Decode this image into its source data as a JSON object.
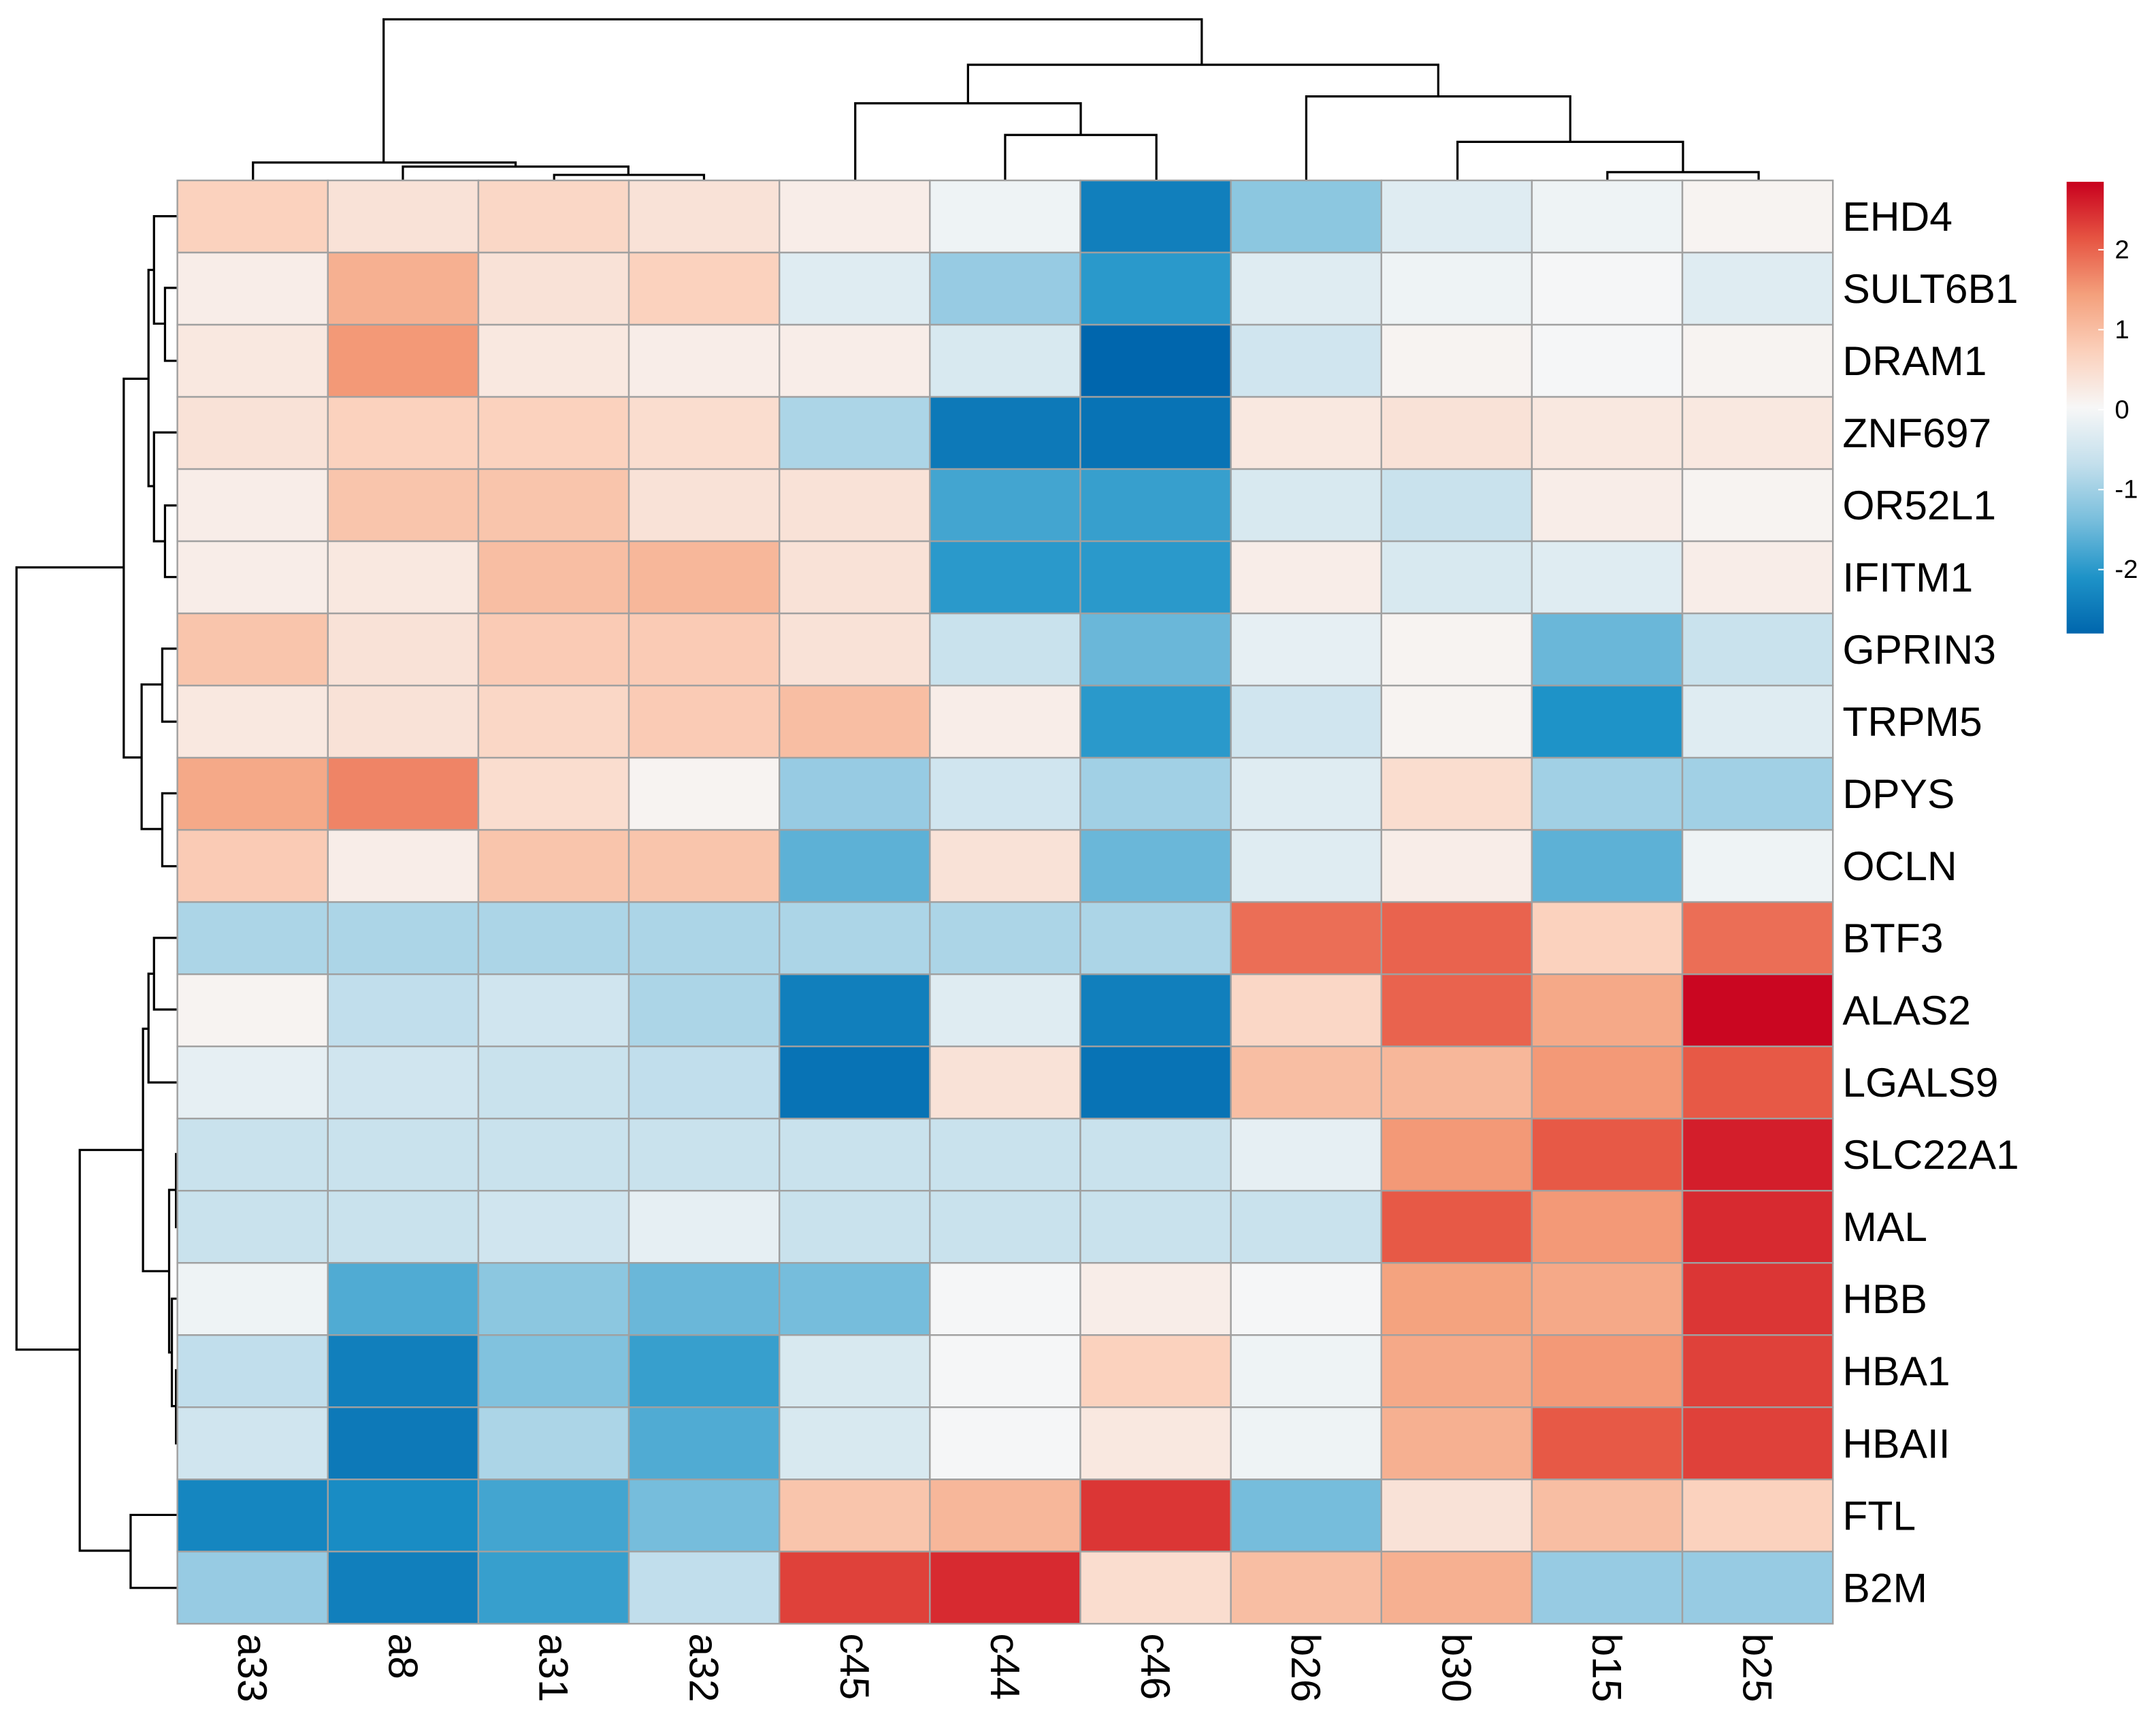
{
  "chart_data": {
    "type": "heatmap",
    "rows": [
      "EHD4",
      "SULT6B1",
      "DRAM1",
      "ZNF697",
      "OR52L1",
      "IFITM1",
      "GPRIN3",
      "TRPM5",
      "DPYS",
      "OCLN",
      "BTF3",
      "ALAS2",
      "LGALS9",
      "SLC22A1",
      "MAL",
      "HBB",
      "HBA1",
      "HBAII",
      "FTL",
      "B2M"
    ],
    "columns": [
      "a33",
      "a8",
      "a31",
      "a32",
      "c45",
      "c44",
      "c46",
      "b26",
      "b30",
      "b15",
      "b25"
    ],
    "values": [
      [
        0.7,
        0.4,
        0.6,
        0.4,
        0.2,
        -0.1,
        -2.4,
        -1.2,
        -0.3,
        -0.1,
        0.1
      ],
      [
        0.2,
        1.2,
        0.4,
        0.7,
        -0.3,
        -1.1,
        -2.0,
        -0.3,
        -0.1,
        0.0,
        -0.3
      ],
      [
        0.3,
        1.5,
        0.3,
        0.2,
        0.2,
        -0.4,
        -2.8,
        -0.5,
        0.1,
        0.0,
        0.1
      ],
      [
        0.4,
        0.7,
        0.7,
        0.5,
        -0.9,
        -2.5,
        -2.6,
        0.3,
        0.4,
        0.3,
        0.3
      ],
      [
        0.2,
        0.9,
        0.9,
        0.4,
        0.4,
        -1.8,
        -1.9,
        -0.4,
        -0.6,
        0.2,
        0.1
      ],
      [
        0.2,
        0.3,
        1.0,
        1.1,
        0.4,
        -2.0,
        -2.0,
        0.2,
        -0.4,
        -0.3,
        0.2
      ],
      [
        0.9,
        0.4,
        0.8,
        0.8,
        0.4,
        -0.6,
        -1.5,
        -0.2,
        0.1,
        -1.5,
        -0.6
      ],
      [
        0.3,
        0.4,
        0.6,
        0.8,
        1.0,
        0.2,
        -2.0,
        -0.5,
        0.1,
        -2.1,
        -0.3
      ],
      [
        1.3,
        1.7,
        0.5,
        0.1,
        -1.1,
        -0.5,
        -1.0,
        -0.3,
        0.5,
        -1.0,
        -1.0
      ],
      [
        0.8,
        0.2,
        0.9,
        0.9,
        -1.6,
        0.4,
        -1.5,
        -0.3,
        0.2,
        -1.6,
        -0.1
      ],
      [
        -0.9,
        -0.9,
        -0.9,
        -0.9,
        -0.9,
        -0.9,
        -0.9,
        1.9,
        2.0,
        0.7,
        1.9
      ],
      [
        0.1,
        -0.7,
        -0.5,
        -0.9,
        -2.4,
        -0.3,
        -2.4,
        0.6,
        2.0,
        1.3,
        2.8
      ],
      [
        -0.2,
        -0.5,
        -0.6,
        -0.7,
        -2.6,
        0.4,
        -2.6,
        1.0,
        1.1,
        1.5,
        2.1
      ],
      [
        -0.6,
        -0.6,
        -0.6,
        -0.6,
        -0.6,
        -0.6,
        -0.6,
        -0.2,
        1.5,
        2.1,
        2.6
      ],
      [
        -0.6,
        -0.6,
        -0.5,
        -0.2,
        -0.6,
        -0.6,
        -0.6,
        -0.6,
        2.1,
        1.5,
        2.5
      ],
      [
        -0.1,
        -1.7,
        -1.2,
        -1.5,
        -1.4,
        0.0,
        0.2,
        0.0,
        1.4,
        1.3,
        2.4
      ],
      [
        -0.7,
        -2.4,
        -1.3,
        -1.9,
        -0.4,
        0.0,
        0.7,
        -0.1,
        1.3,
        1.5,
        2.3
      ],
      [
        -0.5,
        -2.5,
        -0.9,
        -1.7,
        -0.4,
        0.0,
        0.3,
        -0.1,
        1.2,
        2.1,
        2.3
      ],
      [
        -2.3,
        -2.2,
        -1.8,
        -1.4,
        0.9,
        1.1,
        2.4,
        -1.4,
        0.4,
        1.0,
        0.7
      ],
      [
        -1.1,
        -2.4,
        -1.9,
        -0.7,
        2.3,
        2.5,
        0.5,
        1.0,
        1.2,
        -1.1,
        -1.1
      ]
    ],
    "zlim": [
      -2.8,
      2.85
    ],
    "zticks": [
      2,
      1,
      0,
      -1,
      -2
    ],
    "colors": [
      "#0066ad",
      "#1e93c8",
      "#78bedc",
      "#c3dfec",
      "#f7f7f7",
      "#fbd0bb",
      "#f4a07c",
      "#e65442",
      "#c8001e"
    ],
    "cell_border": "#a0a0a0"
  }
}
